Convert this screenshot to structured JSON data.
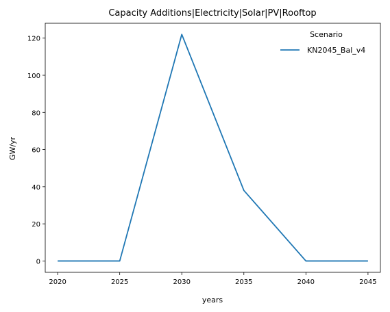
{
  "chart_data": {
    "type": "line",
    "title": "Capacity Additions|Electricity|Solar|PV|Rooftop",
    "xlabel": "years",
    "ylabel": "GW/yr",
    "x": [
      2020,
      2025,
      2030,
      2035,
      2040,
      2045
    ],
    "xticks": [
      "2020",
      "2025",
      "2030",
      "2035",
      "2040",
      "2045"
    ],
    "yticks": [
      "0",
      "20",
      "40",
      "60",
      "80",
      "100",
      "120"
    ],
    "xlim": [
      2019,
      2046
    ],
    "ylim": [
      -6.1,
      128
    ],
    "grid": false,
    "legend": {
      "title": "Scenario",
      "placement": "top-right"
    },
    "series": [
      {
        "name": "KN2045_Bal_v4",
        "color": "#1f77b4",
        "values": [
          0,
          0,
          122,
          38,
          0,
          0
        ]
      }
    ]
  }
}
